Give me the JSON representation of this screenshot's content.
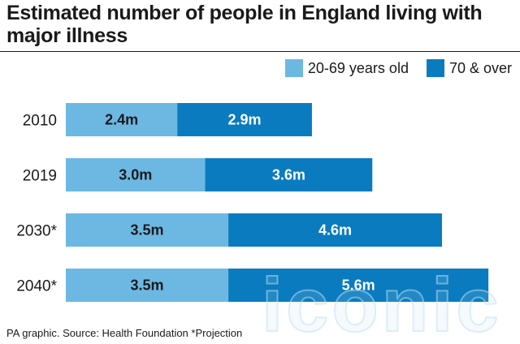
{
  "chart_data": {
    "type": "bar",
    "orientation": "horizontal",
    "stacked": true,
    "title": "Estimated number of people in England living with major illness",
    "categories": [
      "2010",
      "2019",
      "2030*",
      "2040*"
    ],
    "series": [
      {
        "name": "20-69 years old",
        "color": "#6cb8e3",
        "values": [
          2.4,
          3.0,
          3.5,
          3.5
        ],
        "labels": [
          "2.4m",
          "3.0m",
          "3.5m",
          "3.5m"
        ]
      },
      {
        "name": "70 & over",
        "color": "#0a7bbf",
        "values": [
          2.9,
          3.6,
          4.6,
          5.6
        ],
        "labels": [
          "2.9m",
          "3.6m",
          "4.6m",
          "5.6m"
        ]
      }
    ],
    "xlim": [
      0,
      9.5
    ],
    "grid": false,
    "legend_position": "top-right"
  },
  "footer": {
    "source": "PA graphic. Source: Health Foundation *Projection"
  },
  "watermark": {
    "text": "iconic",
    "color": "#bfe0f2"
  }
}
